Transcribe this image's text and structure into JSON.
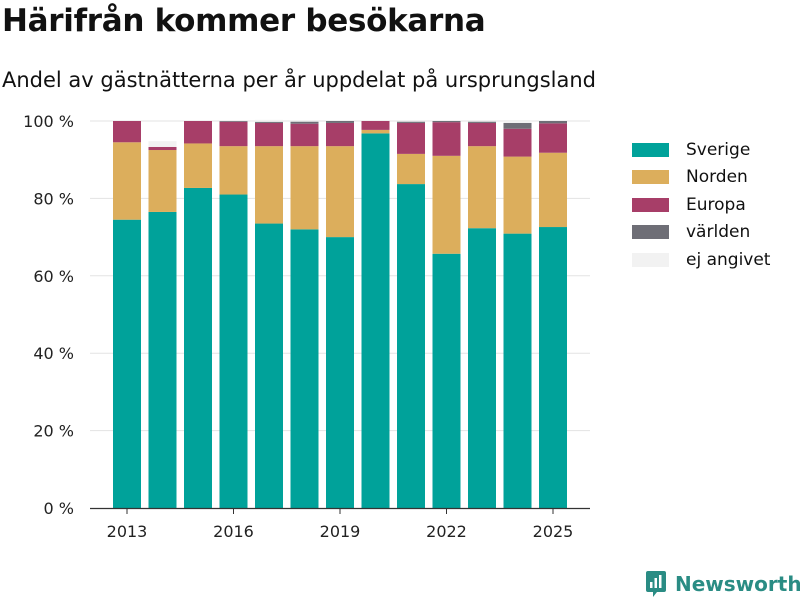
{
  "header": {
    "title": "Härifrån kommer besökarna",
    "subtitle": "Andel av gästnätterna per år uppdelat på ursprungsland"
  },
  "brand": {
    "name": "Newsworthy",
    "color": "#2a8c84"
  },
  "chart_data": {
    "type": "bar",
    "stacked": true,
    "categories": [
      "2013",
      "2014",
      "2015",
      "2016",
      "2017",
      "2018",
      "2019",
      "2020",
      "2021",
      "2022",
      "2023",
      "2024",
      "2025"
    ],
    "x_tick_labels": [
      "2013",
      "2016",
      "2019",
      "2022",
      "2025"
    ],
    "y_ticks": [
      0,
      20,
      40,
      60,
      80,
      100
    ],
    "y_tick_suffix": " %",
    "ylim": [
      0,
      100
    ],
    "grid": true,
    "legend_position": "right",
    "series": [
      {
        "name": "Sverige",
        "color": "#00a29a",
        "values": [
          74.5,
          76.5,
          82.7,
          81.0,
          73.5,
          72.0,
          70.0,
          96.8,
          83.7,
          65.7,
          72.3,
          70.9,
          72.6
        ]
      },
      {
        "name": "Norden",
        "color": "#dcae5c",
        "values": [
          20.0,
          16.0,
          11.5,
          12.5,
          20.0,
          21.5,
          23.5,
          0.9,
          7.8,
          25.3,
          21.2,
          19.9,
          19.2
        ]
      },
      {
        "name": "Europa",
        "color": "#a73e68",
        "values": [
          5.5,
          0.8,
          5.8,
          6.3,
          6.0,
          5.8,
          6.0,
          2.3,
          8.0,
          8.7,
          6.0,
          7.2,
          7.6
        ]
      },
      {
        "name": "världen",
        "color": "#6e6e76",
        "values": [
          0,
          0,
          0,
          0.2,
          0.3,
          0.5,
          0.5,
          0,
          0.3,
          0.3,
          0.3,
          1.5,
          0.6
        ]
      },
      {
        "name": "ej angivet",
        "color": "#f2f2f2",
        "values": [
          0,
          1.5,
          0,
          0,
          0.5,
          0,
          0,
          0,
          0,
          0,
          0,
          0.5,
          0
        ]
      }
    ]
  }
}
